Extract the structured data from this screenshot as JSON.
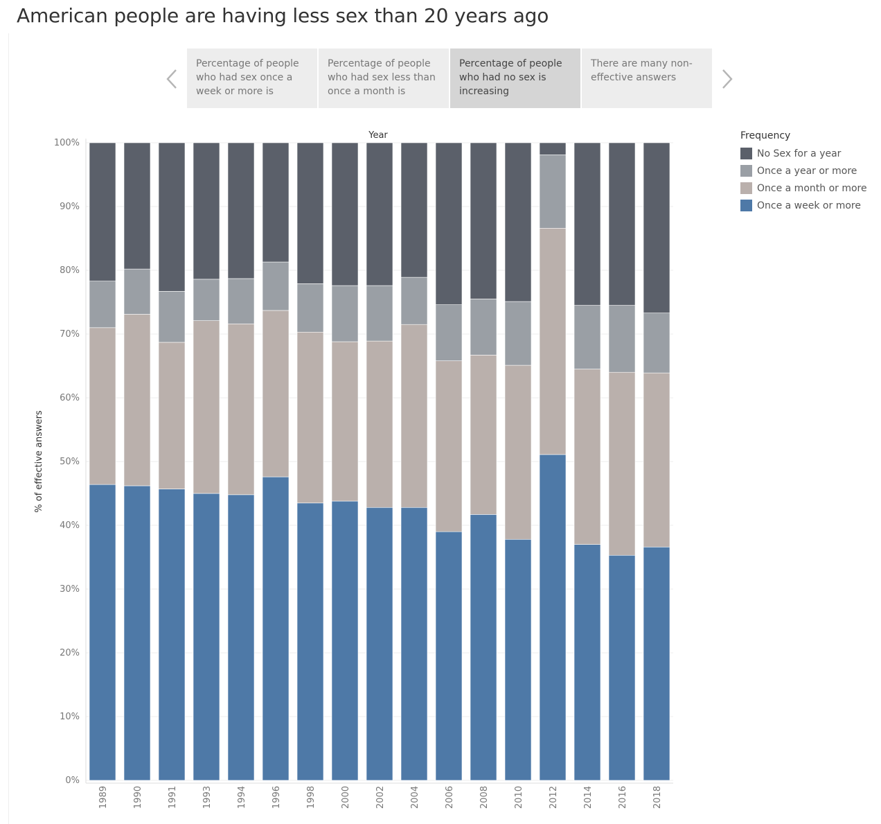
{
  "title": "American people are having less sex than 20 years ago",
  "story_points": [
    {
      "label": "Percentage of people who had sex once a week or more is",
      "active": false
    },
    {
      "label": "Percentage of people who had sex less than once a month is",
      "active": false
    },
    {
      "label": "Percentage of people who had no sex is increasing",
      "active": true
    },
    {
      "label": "There are many non-effective answers",
      "active": false
    }
  ],
  "nav": {
    "prev_icon": "chevron-left-icon",
    "next_icon": "chevron-right-icon"
  },
  "colors": {
    "once_a_week": "#4e79a7",
    "once_a_month": "#bab0ac",
    "once_a_year": "#9a9fa5",
    "no_sex": "#5b606a"
  },
  "legend": {
    "title": "Frequency",
    "items": [
      {
        "label": "No Sex for a year",
        "color": "#5b606a"
      },
      {
        "label": "Once a year or more",
        "color": "#9a9fa5"
      },
      {
        "label": "Once a month or more",
        "color": "#bab0ac"
      },
      {
        "label": "Once a week or more",
        "color": "#4e79a7"
      }
    ]
  },
  "chart_data": {
    "type": "bar",
    "stacked": true,
    "xlabel": "Year",
    "ylabel": "% of effective answers",
    "ylim": [
      0,
      100
    ],
    "yticks": [
      "0%",
      "10%",
      "20%",
      "30%",
      "40%",
      "50%",
      "60%",
      "70%",
      "80%",
      "90%",
      "100%"
    ],
    "categories": [
      "1989",
      "1990",
      "1991",
      "1993",
      "1994",
      "1996",
      "1998",
      "2000",
      "2002",
      "2004",
      "2006",
      "2008",
      "2010",
      "2012",
      "2014",
      "2016",
      "2018"
    ],
    "series": [
      {
        "name": "Once a week or more",
        "color": "#4e79a7",
        "values": [
          46.4,
          46.2,
          45.7,
          45.0,
          44.8,
          47.6,
          43.5,
          43.8,
          42.8,
          42.8,
          39.0,
          41.7,
          37.8,
          51.1,
          37.0,
          35.3,
          36.6
        ]
      },
      {
        "name": "Once a month or more",
        "color": "#bab0ac",
        "values": [
          24.6,
          26.9,
          23.0,
          27.1,
          26.8,
          26.1,
          26.8,
          25.0,
          26.1,
          28.7,
          26.8,
          25.0,
          27.3,
          35.5,
          27.5,
          28.7,
          27.3
        ]
      },
      {
        "name": "Once a year or more",
        "color": "#9a9fa5",
        "values": [
          7.3,
          7.1,
          8.0,
          6.5,
          7.1,
          7.6,
          7.6,
          8.8,
          8.7,
          7.4,
          8.8,
          8.8,
          10.0,
          11.5,
          10.0,
          10.5,
          9.4
        ]
      },
      {
        "name": "No Sex for a year",
        "color": "#5b606a",
        "values": [
          21.7,
          19.8,
          23.3,
          21.4,
          21.3,
          18.7,
          22.1,
          22.4,
          22.4,
          21.1,
          25.4,
          24.5,
          24.9,
          1.9,
          25.5,
          25.5,
          26.7
        ]
      }
    ],
    "grid": true,
    "legend_position": "right"
  }
}
